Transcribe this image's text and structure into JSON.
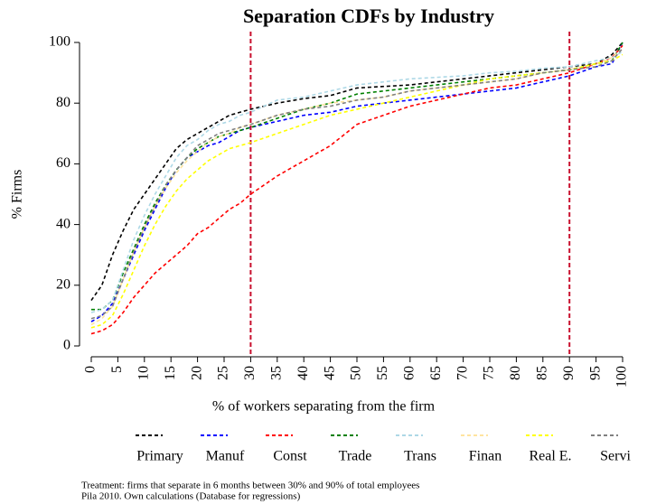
{
  "chart_data": {
    "type": "line",
    "title": "Separation CDFs by Industry",
    "x_label": "% of workers separating from the firm",
    "y_label": "% Firms",
    "notes": [
      "Treatment: firms that separate in 6 months between 30% and 90% of total employees",
      "Pila 2010. Own calculations (Database for regressions)"
    ],
    "xlim": [
      0,
      100
    ],
    "ylim": [
      0,
      100
    ],
    "xticks": [
      0,
      5,
      10,
      15,
      20,
      25,
      30,
      35,
      40,
      45,
      50,
      55,
      60,
      65,
      70,
      75,
      80,
      85,
      90,
      95,
      100
    ],
    "yticks": [
      0,
      20,
      40,
      60,
      80,
      100
    ],
    "reference_lines": [
      30,
      90
    ],
    "reference_color": "#c8102e",
    "legend": "bottom",
    "x": [
      0,
      2,
      4,
      6,
      8,
      10,
      12,
      14,
      16,
      18,
      20,
      22,
      24,
      26,
      28,
      30,
      35,
      40,
      45,
      50,
      55,
      60,
      65,
      70,
      75,
      80,
      85,
      90,
      95,
      98,
      100
    ],
    "series": [
      {
        "name": "Primary",
        "color": "#000000",
        "values": [
          15,
          20,
          30,
          38,
          45,
          50,
          55,
          60,
          65,
          68,
          70,
          72,
          74,
          76,
          77,
          78,
          80,
          81.5,
          82.5,
          85,
          85.5,
          86,
          87,
          88,
          89,
          90,
          91,
          92,
          93,
          96,
          100
        ]
      },
      {
        "name": "Manuf",
        "color": "#0000ff",
        "values": [
          8,
          10,
          14,
          22,
          30,
          38,
          45,
          52,
          58,
          62,
          64,
          66,
          67,
          69,
          71,
          72,
          74,
          76,
          77,
          79,
          80,
          81,
          82,
          83,
          84,
          85,
          87,
          89,
          92,
          93,
          100
        ]
      },
      {
        "name": "Const",
        "color": "#ff0000",
        "values": [
          4,
          5,
          7,
          11,
          16,
          20,
          24,
          27,
          30,
          33,
          37,
          39,
          42,
          45,
          47,
          50,
          56,
          61,
          66,
          73,
          76,
          79,
          81,
          83,
          85,
          86,
          88,
          90,
          93,
          95,
          99
        ]
      },
      {
        "name": "Trade",
        "color": "#008000",
        "values": [
          12,
          12,
          15,
          24,
          32,
          40,
          47,
          53,
          58,
          62,
          65,
          67,
          69,
          70,
          71,
          72,
          75,
          78,
          80,
          83,
          84,
          85,
          86,
          87,
          88,
          89,
          90,
          91,
          93,
          94,
          100
        ]
      },
      {
        "name": "Trans",
        "color": "#add8e6",
        "values": [
          11,
          12,
          15,
          25,
          35,
          43,
          50,
          56,
          62,
          66,
          68,
          71,
          73,
          74,
          76,
          77,
          81,
          82,
          84,
          86,
          87,
          88,
          88.5,
          89,
          90,
          90.5,
          91.5,
          92,
          94,
          95,
          97
        ]
      },
      {
        "name": "Finan",
        "color": "#ffe4a0",
        "values": [
          7,
          9,
          13,
          22,
          31,
          39,
          46,
          52,
          57,
          61,
          64,
          67,
          69,
          70,
          72,
          73,
          76,
          78,
          80,
          81,
          82,
          84,
          85,
          86,
          87,
          88,
          90,
          91,
          93,
          95,
          98
        ]
      },
      {
        "name": "Real E.",
        "color": "#ffff00",
        "values": [
          6,
          7,
          10,
          17,
          25,
          33,
          40,
          46,
          51,
          55,
          58,
          61,
          63,
          65,
          66,
          67,
          70,
          73,
          76,
          78,
          80,
          82,
          84,
          86,
          88,
          89,
          90,
          91,
          93,
          94,
          96
        ]
      },
      {
        "name": "Servi",
        "color": "#808080",
        "values": [
          9,
          10,
          13,
          22,
          31,
          39,
          46,
          53,
          58,
          62,
          66,
          68,
          70,
          71,
          72,
          73,
          76,
          78,
          79,
          81,
          82,
          84,
          85,
          86,
          87,
          88,
          90,
          91,
          92,
          94,
          98
        ]
      }
    ]
  }
}
